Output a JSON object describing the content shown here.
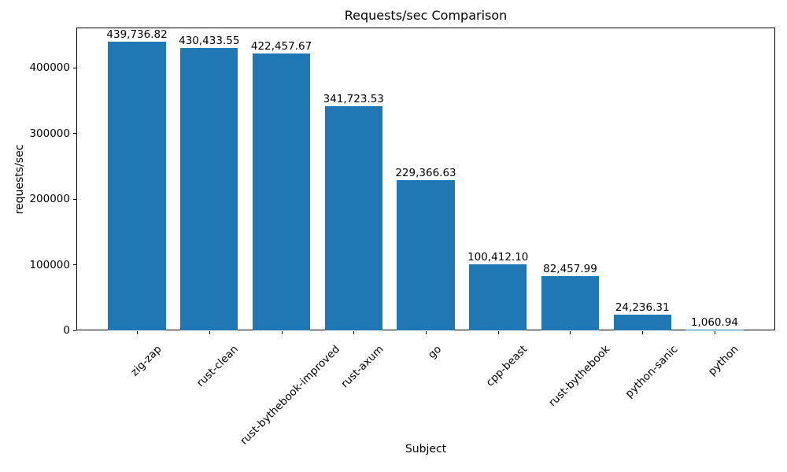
{
  "chart_data": {
    "type": "bar",
    "title": "Requests/sec Comparison",
    "xlabel": "Subject",
    "ylabel": "requests/sec",
    "categories": [
      "zig-zap",
      "rust-clean",
      "rust-bythebook-improved",
      "rust-axum",
      "go",
      "cpp-beast",
      "rust-bythebook",
      "python-sanic",
      "python"
    ],
    "values": [
      439736.82,
      430433.55,
      422457.67,
      341723.53,
      229366.63,
      100412.1,
      82457.99,
      24236.31,
      1060.94
    ],
    "value_labels": [
      "439,736.82",
      "430,433.55",
      "422,457.67",
      "341,723.53",
      "229,366.63",
      "100,412.10",
      "82,457.99",
      "24,236.31",
      "1,060.94"
    ],
    "yticks": [
      0,
      100000,
      200000,
      300000,
      400000
    ],
    "ytick_labels": [
      "0",
      "100000",
      "200000",
      "300000",
      "400000"
    ],
    "ylim": [
      0,
      461724
    ],
    "bar_color": "#1f77b4",
    "grid": false,
    "legend_position": "none",
    "x_tick_rotation_deg": 45
  }
}
